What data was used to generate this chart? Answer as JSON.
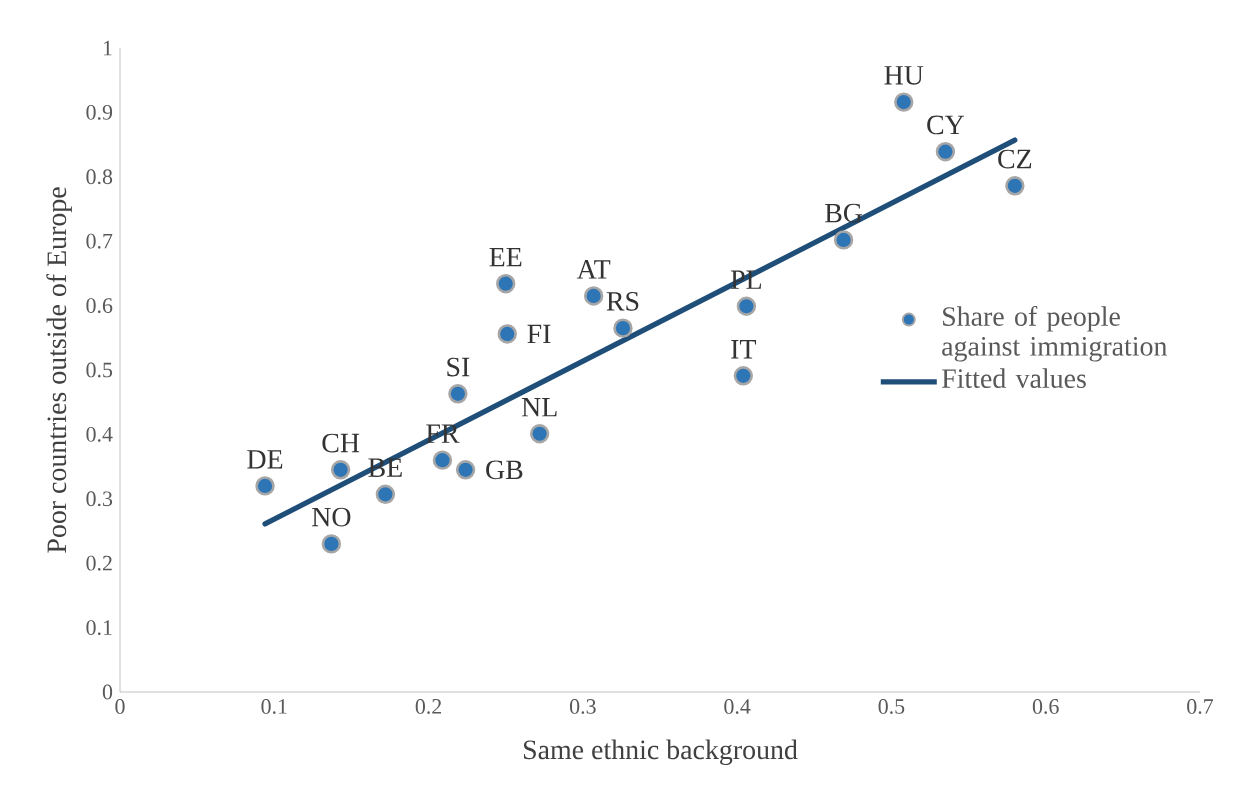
{
  "chart_data": {
    "type": "scatter",
    "xlabel": "Same ethnic background",
    "ylabel": "Poor countries outside of Europe",
    "xlim": [
      0,
      0.7
    ],
    "ylim": [
      0,
      1
    ],
    "xticks": [
      0,
      0.1,
      0.2,
      0.3,
      0.4,
      0.5,
      0.6,
      0.7
    ],
    "yticks": [
      0,
      0.1,
      0.2,
      0.3,
      0.4,
      0.5,
      0.6,
      0.7,
      0.8,
      0.9,
      1
    ],
    "legend": "right",
    "series": [
      {
        "name": "Share of people against immigration",
        "marker": "circle",
        "color": "#2e75b6",
        "x": [
          0.094,
          0.137,
          0.143,
          0.172,
          0.209,
          0.224,
          0.219,
          0.251,
          0.25,
          0.307,
          0.326,
          0.272,
          0.404,
          0.406,
          0.469,
          0.508,
          0.535,
          0.58
        ],
        "values": [
          0.32,
          0.23,
          0.345,
          0.307,
          0.36,
          0.345,
          0.463,
          0.556,
          0.634,
          0.615,
          0.565,
          0.401,
          0.491,
          0.599,
          0.702,
          0.916,
          0.839,
          0.786
        ]
      },
      {
        "name": "Fitted values",
        "type": "line",
        "color": "#1f4e79",
        "x": [
          0.094,
          0.58
        ],
        "values": [
          0.261,
          0.857
        ]
      }
    ],
    "annotations": [
      {
        "text": "DE",
        "x": 0.094,
        "y": 0.32
      },
      {
        "text": "NO",
        "x": 0.137,
        "y": 0.23
      },
      {
        "text": "CH",
        "x": 0.143,
        "y": 0.345
      },
      {
        "text": "BE",
        "x": 0.172,
        "y": 0.307
      },
      {
        "text": "FR",
        "x": 0.209,
        "y": 0.36
      },
      {
        "text": "GB",
        "x": 0.224,
        "y": 0.345
      },
      {
        "text": "SI",
        "x": 0.219,
        "y": 0.463
      },
      {
        "text": "FI",
        "x": 0.251,
        "y": 0.556
      },
      {
        "text": "EE",
        "x": 0.25,
        "y": 0.634
      },
      {
        "text": "AT",
        "x": 0.307,
        "y": 0.615
      },
      {
        "text": "RS",
        "x": 0.326,
        "y": 0.565
      },
      {
        "text": "NL",
        "x": 0.272,
        "y": 0.401
      },
      {
        "text": "IT",
        "x": 0.404,
        "y": 0.491
      },
      {
        "text": "PL",
        "x": 0.406,
        "y": 0.599
      },
      {
        "text": "BG",
        "x": 0.469,
        "y": 0.702
      },
      {
        "text": "HU",
        "x": 0.508,
        "y": 0.916
      },
      {
        "text": "CY",
        "x": 0.535,
        "y": 0.839
      },
      {
        "text": "CZ",
        "x": 0.58,
        "y": 0.786
      }
    ]
  }
}
